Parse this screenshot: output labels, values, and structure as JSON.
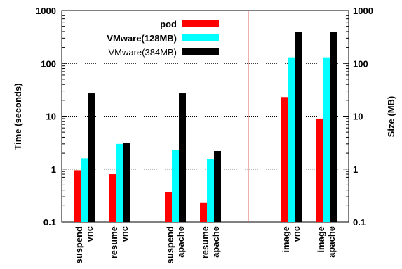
{
  "chart_data": {
    "type": "bar",
    "log_scale": true,
    "grid": "horizontal dotted at major decades",
    "legend_placement": "top-center",
    "divider_color": "#e06060",
    "y_left": {
      "label": "Time (seconds)",
      "ylim": [
        0.1,
        1000
      ],
      "ticks": [
        "0.1",
        "1",
        "10",
        "100",
        "1000"
      ]
    },
    "y_right": {
      "label": "Size (MB)",
      "ylim": [
        0.1,
        1000
      ],
      "ticks": [
        "0.1",
        "1",
        "10",
        "100",
        "1000"
      ]
    },
    "categories": [
      {
        "line1": "suspend",
        "line2": "vnc"
      },
      {
        "line1": "resume",
        "line2": "vnc"
      },
      {
        "line1": "suspend",
        "line2": "apache"
      },
      {
        "line1": "resume",
        "line2": "apache"
      },
      {
        "line1": "image",
        "line2": "vnc"
      },
      {
        "line1": "image",
        "line2": "apache"
      }
    ],
    "series": [
      {
        "name": "pod",
        "color": "#ff0000",
        "values": [
          0.95,
          0.8,
          0.37,
          0.23,
          23,
          9
        ]
      },
      {
        "name": "VMware(128MB)",
        "color": "#00ffff",
        "values": [
          1.6,
          3.0,
          2.3,
          1.55,
          130,
          130
        ]
      },
      {
        "name": "VMware(384MB)",
        "color": "#000000",
        "values": [
          27,
          3.1,
          27,
          2.2,
          390,
          390
        ]
      }
    ]
  }
}
